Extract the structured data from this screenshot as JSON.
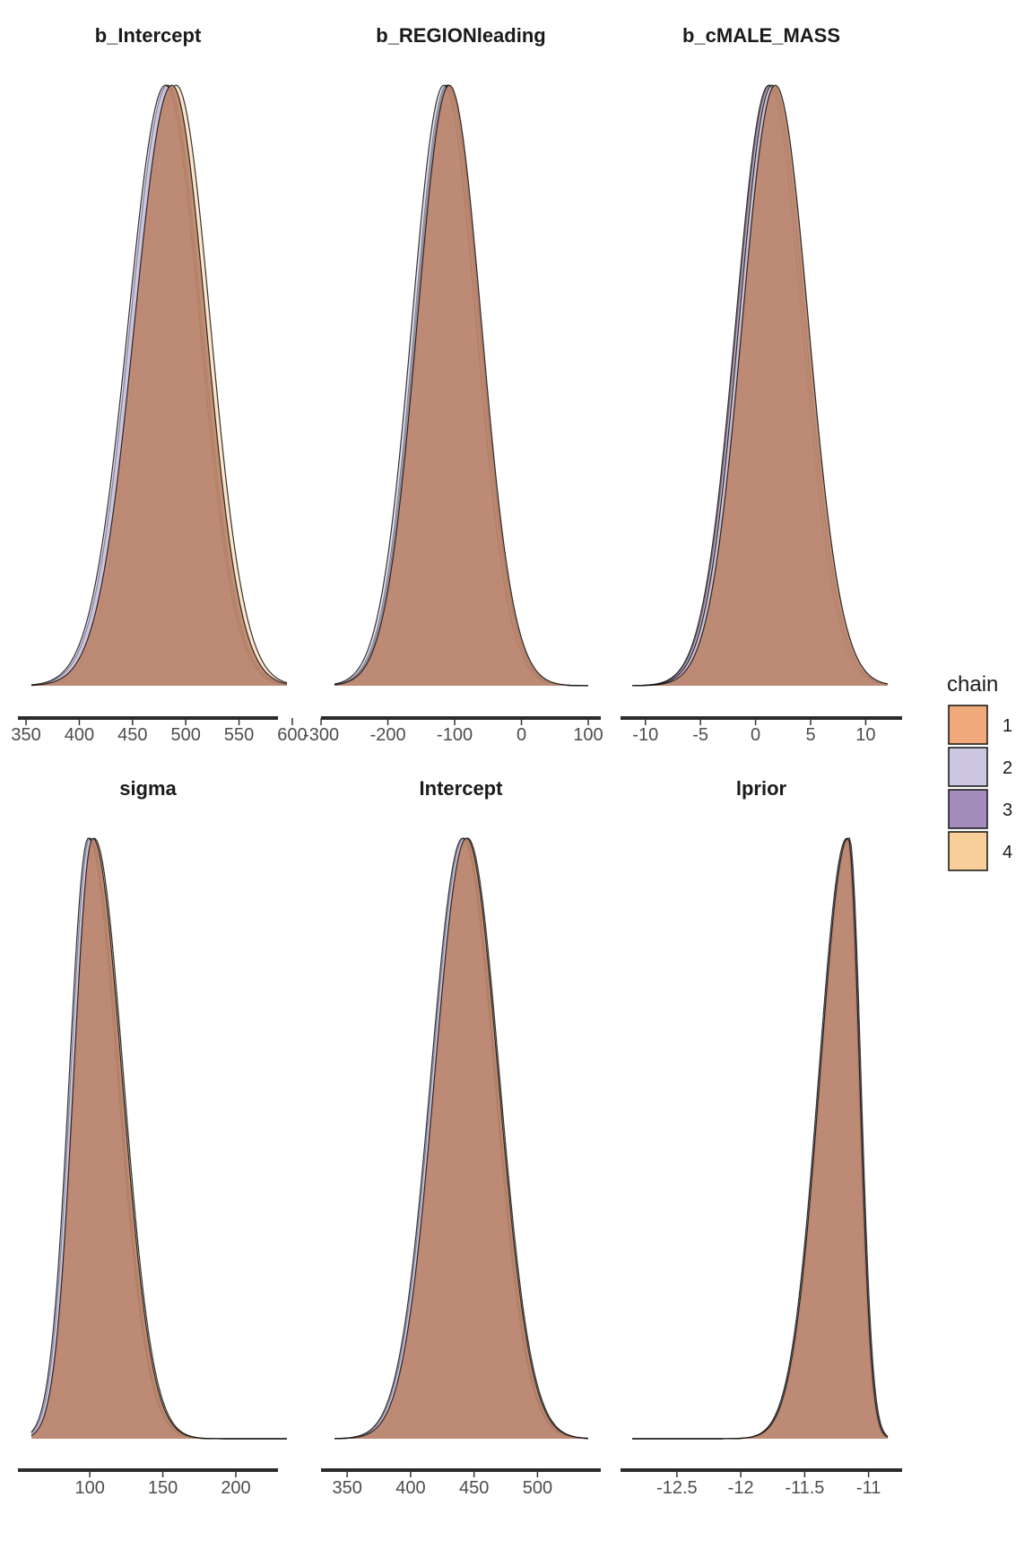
{
  "chart_data": {
    "type": "area",
    "legend": {
      "title": "chain",
      "placement": "right",
      "entries": [
        {
          "label": "1",
          "color": "#F0A97A"
        },
        {
          "label": "2",
          "color": "#CDC6E1"
        },
        {
          "label": "3",
          "color": "#A28DBD"
        },
        {
          "label": "4",
          "color": "#F8CF9A"
        }
      ]
    },
    "overlap_color": "#BC856C",
    "grid": false,
    "panels": [
      {
        "title": "b_Intercept",
        "xlim": [
          355,
          595
        ],
        "ticks": [
          350,
          400,
          450,
          500,
          550,
          600
        ],
        "peaks": [
          487,
          481,
          483,
          491
        ],
        "sd_left": 35,
        "sd_right": 32
      },
      {
        "title": "b_REGIONleading",
        "xlim": [
          -280,
          100
        ],
        "ticks": [
          -300,
          -200,
          -100,
          0,
          100
        ],
        "peaks": [
          -108,
          -116,
          -110,
          -112
        ],
        "sd_left": 48,
        "sd_right": 48
      },
      {
        "title": "b_cMALE_MASS",
        "xlim": [
          -11.2,
          12
        ],
        "ticks": [
          -10,
          -5,
          0,
          5,
          10
        ],
        "peaks": [
          1.8,
          1.5,
          1.2,
          1.3
        ],
        "sd_left": 3.0,
        "sd_right": 3.0
      },
      {
        "title": "sigma",
        "xlim": [
          60,
          235
        ],
        "ticks": [
          100,
          150,
          200
        ],
        "peaks": [
          102,
          99,
          100,
          103
        ],
        "sd_left": 13,
        "sd_right": 20
      },
      {
        "title": "Intercept",
        "xlim": [
          340,
          540
        ],
        "ticks": [
          350,
          400,
          450,
          500
        ],
        "peaks": [
          444,
          441,
          442,
          445
        ],
        "sd_left": 25,
        "sd_right": 25
      },
      {
        "title": "lprior",
        "xlim": [
          -12.85,
          -10.85
        ],
        "ticks": [
          -12.5,
          -12.0,
          -11.5,
          -11.0
        ],
        "peaks": [
          -11.16,
          -11.17,
          -11.15,
          -11.16
        ],
        "sd_left": 0.22,
        "sd_right": 0.09
      }
    ]
  }
}
